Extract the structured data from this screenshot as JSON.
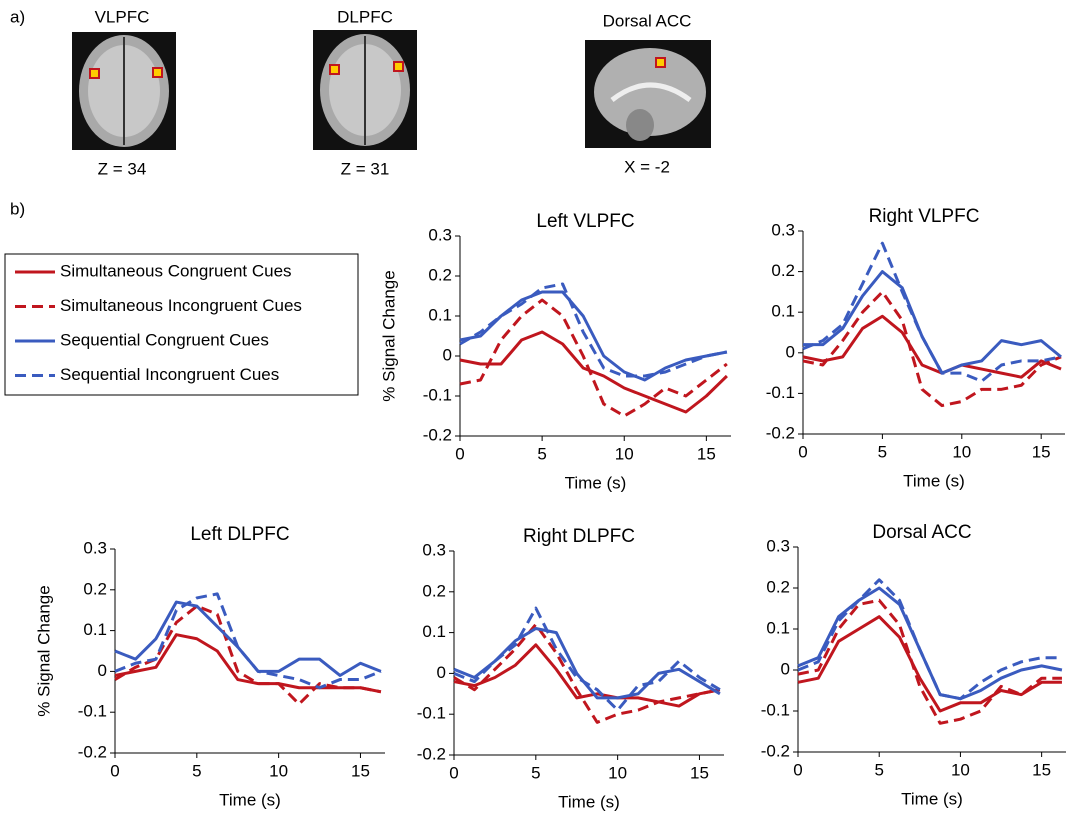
{
  "panel_a": {
    "label": "a)",
    "images": [
      {
        "title": "VLPFC",
        "coordinate": "Z = 34"
      },
      {
        "title": "DLPFC",
        "coordinate": "Z = 31"
      },
      {
        "title": "Dorsal ACC",
        "coordinate": "X = -2"
      }
    ]
  },
  "panel_b": {
    "label": "b)"
  },
  "chart_data": [
    {
      "type": "line",
      "title": "Left VLPFC",
      "xlabel": "Time (s)",
      "ylabel": "% Signal Change",
      "x": [
        0,
        1.25,
        2.5,
        3.75,
        5,
        6.25,
        7.5,
        8.75,
        10,
        11.25,
        12.5,
        13.75,
        15,
        16.25
      ],
      "xlim": [
        0,
        16.5
      ],
      "xticks": [
        0,
        5,
        10,
        15
      ],
      "ylim": [
        -0.2,
        0.3
      ],
      "yticks": [
        -0.2,
        -0.1,
        0,
        0.1,
        0.2,
        0.3
      ],
      "series": [
        {
          "name": "Simultaneous Congruent Cues",
          "color": "#c0161e",
          "line_style": "solid",
          "values": [
            -0.01,
            -0.02,
            -0.02,
            0.04,
            0.06,
            0.03,
            -0.03,
            -0.05,
            -0.08,
            -0.1,
            -0.12,
            -0.14,
            -0.1,
            -0.05
          ]
        },
        {
          "name": "Simultaneous Incongruent Cues",
          "color": "#c0161e",
          "line_style": "dashed",
          "values": [
            -0.07,
            -0.06,
            0.04,
            0.1,
            0.14,
            0.1,
            0.0,
            -0.12,
            -0.15,
            -0.12,
            -0.08,
            -0.1,
            -0.06,
            -0.02
          ]
        },
        {
          "name": "Sequential Congruent Cues",
          "color": "#3a5bbf",
          "line_style": "solid",
          "values": [
            0.04,
            0.05,
            0.1,
            0.14,
            0.16,
            0.16,
            0.1,
            0.0,
            -0.04,
            -0.06,
            -0.03,
            -0.01,
            0.0,
            0.01
          ]
        },
        {
          "name": "Sequential Incongruent Cues",
          "color": "#3a5bbf",
          "line_style": "dashed",
          "values": [
            0.03,
            0.06,
            0.1,
            0.13,
            0.17,
            0.18,
            0.06,
            -0.03,
            -0.05,
            -0.05,
            -0.04,
            -0.02,
            0.0,
            0.01
          ]
        }
      ]
    },
    {
      "type": "line",
      "title": "Right VLPFC",
      "xlabel": "Time (s)",
      "x": [
        0,
        1.25,
        2.5,
        3.75,
        5,
        6.25,
        7.5,
        8.75,
        10,
        11.25,
        12.5,
        13.75,
        15,
        16.25
      ],
      "xlim": [
        0,
        16.5
      ],
      "xticks": [
        0,
        5,
        10,
        15
      ],
      "ylim": [
        -0.2,
        0.3
      ],
      "yticks": [
        -0.2,
        -0.1,
        0,
        0.1,
        0.2,
        0.3
      ],
      "series": [
        {
          "name": "Simultaneous Congruent Cues",
          "color": "#c0161e",
          "line_style": "solid",
          "values": [
            -0.01,
            -0.02,
            -0.01,
            0.06,
            0.09,
            0.05,
            -0.03,
            -0.05,
            -0.03,
            -0.04,
            -0.05,
            -0.06,
            -0.02,
            -0.04
          ]
        },
        {
          "name": "Simultaneous Incongruent Cues",
          "color": "#c0161e",
          "line_style": "dashed",
          "values": [
            -0.02,
            -0.03,
            0.03,
            0.1,
            0.15,
            0.08,
            -0.09,
            -0.13,
            -0.12,
            -0.09,
            -0.09,
            -0.08,
            -0.03,
            -0.01
          ]
        },
        {
          "name": "Sequential Congruent Cues",
          "color": "#3a5bbf",
          "line_style": "solid",
          "values": [
            0.02,
            0.02,
            0.06,
            0.14,
            0.2,
            0.16,
            0.04,
            -0.05,
            -0.03,
            -0.02,
            0.03,
            0.02,
            0.03,
            -0.01
          ]
        },
        {
          "name": "Sequential Incongruent Cues",
          "color": "#3a5bbf",
          "line_style": "dashed",
          "values": [
            0.01,
            0.03,
            0.07,
            0.17,
            0.27,
            0.15,
            0.04,
            -0.05,
            -0.05,
            -0.07,
            -0.03,
            -0.02,
            -0.02,
            -0.01
          ]
        }
      ]
    },
    {
      "type": "line",
      "title": "Left DLPFC",
      "xlabel": "Time (s)",
      "ylabel": "% Signal Change",
      "x": [
        0,
        1.25,
        2.5,
        3.75,
        5,
        6.25,
        7.5,
        8.75,
        10,
        11.25,
        12.5,
        13.75,
        15,
        16.25
      ],
      "xlim": [
        0,
        16.5
      ],
      "xticks": [
        0,
        5,
        10,
        15
      ],
      "ylim": [
        -0.2,
        0.3
      ],
      "yticks": [
        -0.2,
        -0.1,
        0,
        0.1,
        0.2,
        0.3
      ],
      "series": [
        {
          "name": "Simultaneous Congruent Cues",
          "color": "#c0161e",
          "line_style": "solid",
          "values": [
            -0.01,
            0.0,
            0.01,
            0.09,
            0.08,
            0.05,
            -0.02,
            -0.03,
            -0.03,
            -0.04,
            -0.04,
            -0.04,
            -0.04,
            -0.05
          ]
        },
        {
          "name": "Simultaneous Incongruent Cues",
          "color": "#c0161e",
          "line_style": "dashed",
          "values": [
            -0.02,
            0.01,
            0.03,
            0.12,
            0.16,
            0.14,
            0.0,
            -0.03,
            -0.03,
            -0.08,
            -0.03,
            -0.04,
            -0.04,
            -0.05
          ]
        },
        {
          "name": "Sequential Congruent Cues",
          "color": "#3a5bbf",
          "line_style": "solid",
          "values": [
            0.05,
            0.03,
            0.08,
            0.17,
            0.16,
            0.11,
            0.06,
            0.0,
            0.0,
            0.03,
            0.03,
            -0.01,
            0.02,
            0.0
          ]
        },
        {
          "name": "Sequential Incongruent Cues",
          "color": "#3a5bbf",
          "line_style": "dashed",
          "values": [
            0.0,
            0.02,
            0.03,
            0.15,
            0.18,
            0.19,
            0.06,
            0.0,
            -0.01,
            -0.02,
            -0.04,
            -0.02,
            -0.02,
            0.0
          ]
        }
      ]
    },
    {
      "type": "line",
      "title": "Right DLPFC",
      "xlabel": "Time (s)",
      "x": [
        0,
        1.25,
        2.5,
        3.75,
        5,
        6.25,
        7.5,
        8.75,
        10,
        11.25,
        12.5,
        13.75,
        15,
        16.25
      ],
      "xlim": [
        0,
        16.5
      ],
      "xticks": [
        0,
        5,
        10,
        15
      ],
      "ylim": [
        -0.2,
        0.3
      ],
      "yticks": [
        -0.2,
        -0.1,
        0,
        0.1,
        0.2,
        0.3
      ],
      "series": [
        {
          "name": "Simultaneous Congruent Cues",
          "color": "#c0161e",
          "line_style": "solid",
          "values": [
            -0.02,
            -0.03,
            -0.01,
            0.02,
            0.07,
            0.01,
            -0.06,
            -0.05,
            -0.06,
            -0.06,
            -0.07,
            -0.08,
            -0.05,
            -0.04
          ]
        },
        {
          "name": "Simultaneous Incongruent Cues",
          "color": "#c0161e",
          "line_style": "dashed",
          "values": [
            -0.01,
            -0.04,
            0.01,
            0.06,
            0.12,
            0.05,
            -0.04,
            -0.12,
            -0.1,
            -0.09,
            -0.07,
            -0.06,
            -0.05,
            -0.04
          ]
        },
        {
          "name": "Sequential Congruent Cues",
          "color": "#3a5bbf",
          "line_style": "solid",
          "values": [
            0.01,
            -0.01,
            0.03,
            0.08,
            0.11,
            0.1,
            0.0,
            -0.06,
            -0.06,
            -0.05,
            0.0,
            0.01,
            -0.02,
            -0.05
          ]
        },
        {
          "name": "Sequential Incongruent Cues",
          "color": "#3a5bbf",
          "line_style": "dashed",
          "values": [
            0.0,
            -0.02,
            0.03,
            0.07,
            0.16,
            0.06,
            -0.01,
            -0.04,
            -0.09,
            -0.03,
            -0.02,
            0.03,
            -0.01,
            -0.04
          ]
        }
      ]
    },
    {
      "type": "line",
      "title": "Dorsal ACC",
      "xlabel": "Time (s)",
      "x": [
        0,
        1.25,
        2.5,
        3.75,
        5,
        6.25,
        7.5,
        8.75,
        10,
        11.25,
        12.5,
        13.75,
        15,
        16.25
      ],
      "xlim": [
        0,
        16.5
      ],
      "xticks": [
        0,
        5,
        10,
        15
      ],
      "ylim": [
        -0.2,
        0.3
      ],
      "yticks": [
        -0.2,
        -0.1,
        0,
        0.1,
        0.2,
        0.3
      ],
      "series": [
        {
          "name": "Simultaneous Congruent Cues",
          "color": "#c0161e",
          "line_style": "solid",
          "values": [
            -0.03,
            -0.02,
            0.07,
            0.1,
            0.13,
            0.08,
            -0.02,
            -0.1,
            -0.08,
            -0.08,
            -0.05,
            -0.06,
            -0.03,
            -0.03
          ]
        },
        {
          "name": "Simultaneous Incongruent Cues",
          "color": "#c0161e",
          "line_style": "dashed",
          "values": [
            -0.01,
            0.0,
            0.1,
            0.16,
            0.17,
            0.11,
            -0.04,
            -0.13,
            -0.12,
            -0.1,
            -0.04,
            -0.06,
            -0.02,
            -0.02
          ]
        },
        {
          "name": "Sequential Congruent Cues",
          "color": "#3a5bbf",
          "line_style": "solid",
          "values": [
            0.01,
            0.03,
            0.13,
            0.17,
            0.2,
            0.16,
            0.05,
            -0.06,
            -0.07,
            -0.05,
            -0.02,
            0.0,
            0.01,
            0.0
          ]
        },
        {
          "name": "Sequential Incongruent Cues",
          "color": "#3a5bbf",
          "line_style": "dashed",
          "values": [
            0.0,
            0.02,
            0.12,
            0.17,
            0.22,
            0.17,
            0.05,
            -0.06,
            -0.07,
            -0.03,
            0.0,
            0.02,
            0.03,
            0.03
          ]
        }
      ]
    }
  ]
}
